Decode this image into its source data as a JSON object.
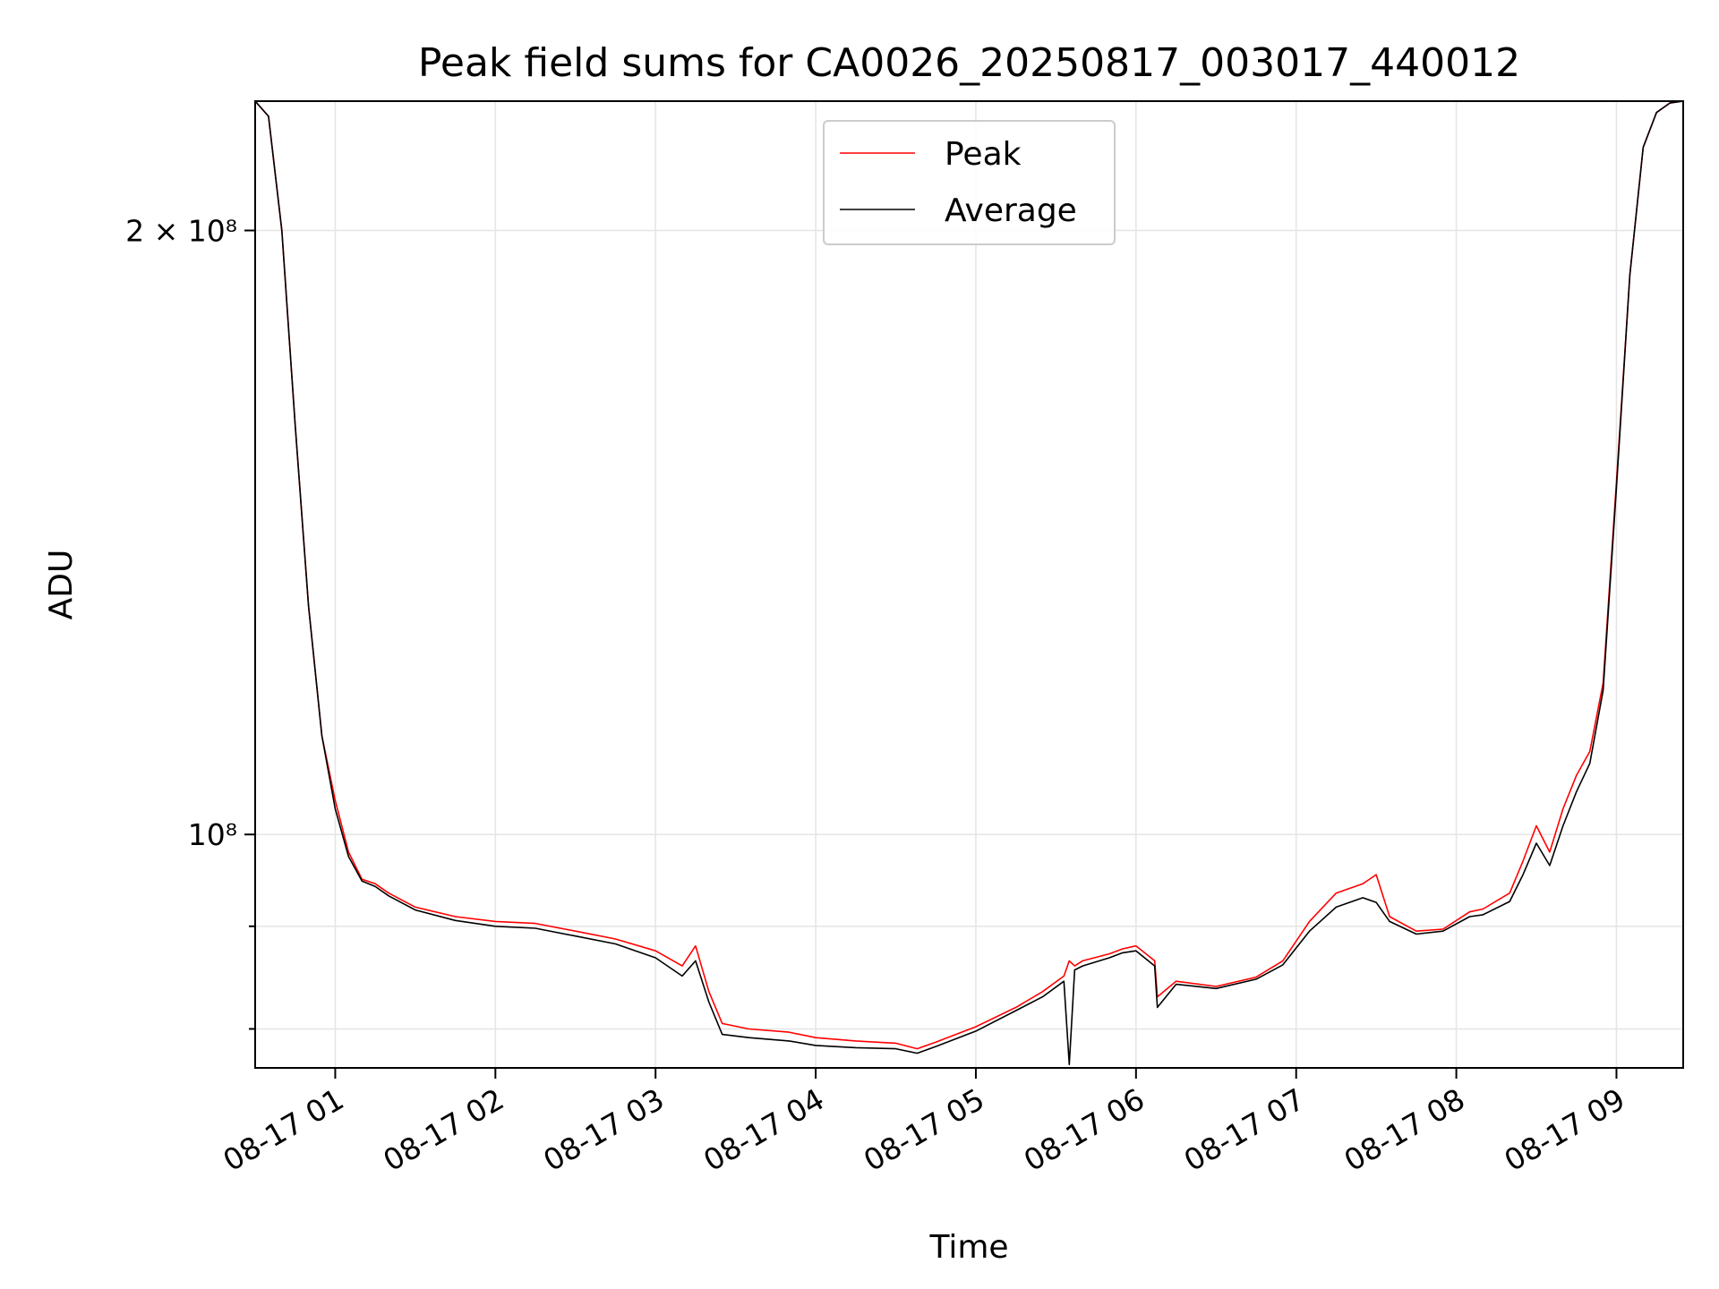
{
  "chart_data": {
    "type": "line",
    "title": "Peak field sums for CA0026_20250817_003017_440012",
    "xlabel": "Time",
    "ylabel": "ADU",
    "yscale": "log",
    "ylim": [
      76500000,
      232000000
    ],
    "xlim": [
      "2025-08-17 00:30",
      "2025-08-17 09:25"
    ],
    "x_ticks": [
      "08-17 01",
      "08-17 02",
      "08-17 03",
      "08-17 04",
      "08-17 05",
      "08-17 06",
      "08-17 07",
      "08-17 08",
      "08-17 09"
    ],
    "y_ticks": [
      {
        "value": 200000000,
        "label": "2 × 10⁸"
      },
      {
        "value": 100000000,
        "label": "10⁸"
      }
    ],
    "y_minor_ticks": [
      80000000,
      90000000
    ],
    "grid": true,
    "legend_position": "upper center",
    "x": [
      "2025-08-17 00:30",
      "2025-08-17 00:35",
      "2025-08-17 00:40",
      "2025-08-17 00:45",
      "2025-08-17 00:50",
      "2025-08-17 00:55",
      "2025-08-17 01:00",
      "2025-08-17 01:05",
      "2025-08-17 01:10",
      "2025-08-17 01:15",
      "2025-08-17 01:20",
      "2025-08-17 01:30",
      "2025-08-17 01:45",
      "2025-08-17 02:00",
      "2025-08-17 02:15",
      "2025-08-17 02:30",
      "2025-08-17 02:45",
      "2025-08-17 03:00",
      "2025-08-17 03:10",
      "2025-08-17 03:15",
      "2025-08-17 03:20",
      "2025-08-17 03:25",
      "2025-08-17 03:35",
      "2025-08-17 03:50",
      "2025-08-17 04:00",
      "2025-08-17 04:15",
      "2025-08-17 04:30",
      "2025-08-17 04:38",
      "2025-08-17 04:45",
      "2025-08-17 05:00",
      "2025-08-17 05:15",
      "2025-08-17 05:25",
      "2025-08-17 05:33",
      "2025-08-17 05:35",
      "2025-08-17 05:37",
      "2025-08-17 05:40",
      "2025-08-17 05:50",
      "2025-08-17 05:55",
      "2025-08-17 06:00",
      "2025-08-17 06:07",
      "2025-08-17 06:08",
      "2025-08-17 06:15",
      "2025-08-17 06:30",
      "2025-08-17 06:45",
      "2025-08-17 06:55",
      "2025-08-17 07:05",
      "2025-08-17 07:15",
      "2025-08-17 07:25",
      "2025-08-17 07:30",
      "2025-08-17 07:35",
      "2025-08-17 07:45",
      "2025-08-17 07:55",
      "2025-08-17 08:05",
      "2025-08-17 08:10",
      "2025-08-17 08:20",
      "2025-08-17 08:25",
      "2025-08-17 08:30",
      "2025-08-17 08:35",
      "2025-08-17 08:40",
      "2025-08-17 08:45",
      "2025-08-17 08:50",
      "2025-08-17 08:55",
      "2025-08-17 09:00",
      "2025-08-17 09:05",
      "2025-08-17 09:10",
      "2025-08-17 09:15",
      "2025-08-17 09:20",
      "2025-08-17 09:25"
    ],
    "series": [
      {
        "name": "Peak",
        "color": "#ff0000",
        "values": [
          232000000,
          228000000,
          200000000,
          160000000,
          130000000,
          112000000,
          104000000,
          98000000,
          95000000,
          94500000,
          93500000,
          92000000,
          91000000,
          90500000,
          90300000,
          89500000,
          88700000,
          87500000,
          86000000,
          88000000,
          83500000,
          80500000,
          80000000,
          79700000,
          79200000,
          78900000,
          78700000,
          78200000,
          78800000,
          80200000,
          82000000,
          83500000,
          85000000,
          86500000,
          86000000,
          86500000,
          87200000,
          87700000,
          88000000,
          86500000,
          83000000,
          84500000,
          84000000,
          84900000,
          86500000,
          90500000,
          93500000,
          94500000,
          95500000,
          91000000,
          89500000,
          89700000,
          91500000,
          91800000,
          93500000,
          97000000,
          101000000,
          98000000,
          103000000,
          107000000,
          110000000,
          119000000,
          150000000,
          190000000,
          220000000,
          229000000,
          231500000,
          232000000
        ]
      },
      {
        "name": "Average",
        "color": "#000000",
        "values": [
          232000000,
          228000000,
          200000000,
          160000000,
          130000000,
          112000000,
          103000000,
          97500000,
          94800000,
          94200000,
          93200000,
          91700000,
          90600000,
          90000000,
          89800000,
          89000000,
          88200000,
          86800000,
          85000000,
          86500000,
          82500000,
          79500000,
          79200000,
          78900000,
          78500000,
          78300000,
          78200000,
          77800000,
          78400000,
          79800000,
          81700000,
          83000000,
          84500000,
          76800000,
          85600000,
          86000000,
          86800000,
          87300000,
          87500000,
          86000000,
          82000000,
          84200000,
          83800000,
          84700000,
          86100000,
          89500000,
          92000000,
          93000000,
          92500000,
          90500000,
          89200000,
          89500000,
          91000000,
          91200000,
          92600000,
          95500000,
          99000000,
          96500000,
          101000000,
          105000000,
          108500000,
          118000000,
          149000000,
          190000000,
          220000000,
          229000000,
          231500000,
          232000000
        ]
      }
    ]
  }
}
